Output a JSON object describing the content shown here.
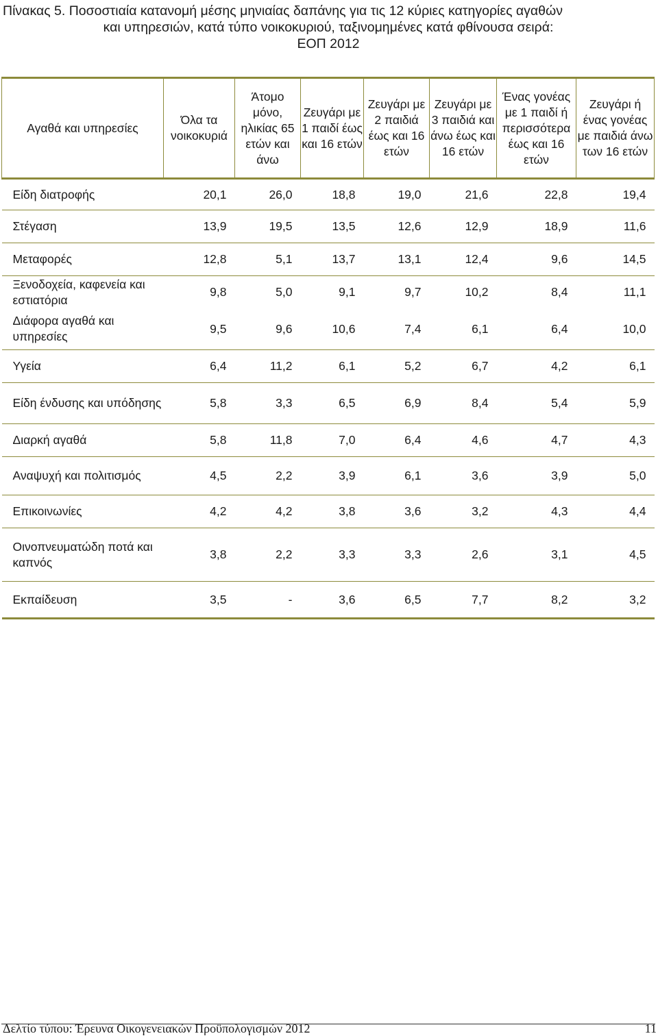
{
  "title": {
    "line1": "Πίνακας 5. Ποσοστιαία κατανομή μέσης μηνιαίας δαπάνης για τις 12 κύριες κατηγορίες αγαθών",
    "line2": "και υπηρεσιών, κατά τύπο νοικοκυριού, ταξινομημένες κατά φθίνουσα σειρά:",
    "line3": "ΕΟΠ 2012"
  },
  "headers": [
    "Αγαθά και υπηρεσίες",
    "Όλα τα νοικοκυριά",
    "Άτομο μόνο, ηλικίας 65 ετών και άνω",
    "Ζευγάρι με 1 παιδί έως και 16 ετών",
    "Ζευγάρι με 2 παιδιά έως και 16 ετών",
    "Ζευγάρι με 3 παιδιά και άνω έως και 16 ετών",
    "Ένας γονέας με 1 παιδί ή περισσότερα έως και 16 ετών",
    "Ζευγάρι ή ένας γονέας με παιδιά άνω των 16 ετών"
  ],
  "rows": [
    {
      "category": "Είδη διατροφής",
      "values": [
        "20,1",
        "26,0",
        "18,8",
        "19,0",
        "21,6",
        "22,8",
        "19,4"
      ]
    },
    {
      "category": "Στέγαση",
      "values": [
        "13,9",
        "19,5",
        "13,5",
        "12,6",
        "12,9",
        "18,9",
        "11,6"
      ]
    },
    {
      "category": "Μεταφορές",
      "values": [
        "12,8",
        "5,1",
        "13,7",
        "13,1",
        "12,4",
        "9,6",
        "14,5"
      ]
    },
    {
      "category": "Ξενοδοχεία, καφενεία και εστιατόρια",
      "values": [
        "9,8",
        "5,0",
        "9,1",
        "9,7",
        "10,2",
        "8,4",
        "11,1"
      ]
    },
    {
      "category": "Διάφορα αγαθά και υπηρεσίες",
      "values": [
        "9,5",
        "9,6",
        "10,6",
        "7,4",
        "6,1",
        "6,4",
        "10,0"
      ]
    },
    {
      "category": "Υγεία",
      "values": [
        "6,4",
        "11,2",
        "6,1",
        "5,2",
        "6,7",
        "4,2",
        "6,1"
      ]
    },
    {
      "category": "Είδη ένδυσης και υπόδησης",
      "values": [
        "5,8",
        "3,3",
        "6,5",
        "6,9",
        "8,4",
        "5,4",
        "5,9"
      ]
    },
    {
      "category": "Διαρκή αγαθά",
      "values": [
        "5,8",
        "11,8",
        "7,0",
        "6,4",
        "4,6",
        "4,7",
        "4,3"
      ]
    },
    {
      "category": "Αναψυχή και πολιτισμός",
      "values": [
        "4,5",
        "2,2",
        "3,9",
        "6,1",
        "3,6",
        "3,9",
        "5,0"
      ]
    },
    {
      "category": "Επικοινωνίες",
      "values": [
        "4,2",
        "4,2",
        "3,8",
        "3,6",
        "3,2",
        "4,3",
        "4,4"
      ]
    },
    {
      "category": "Οινοπνευματώδη ποτά και καπνός",
      "values": [
        "3,8",
        "2,2",
        "3,3",
        "3,3",
        "2,6",
        "3,1",
        "4,5"
      ]
    },
    {
      "category": "Εκπαίδευση",
      "values": [
        "3,5",
        "-",
        "3,6",
        "6,5",
        "7,7",
        "8,2",
        "3,2"
      ]
    }
  ],
  "footer": {
    "publication": "Δελτίο τύπου: Έρευνα Οικογενειακών Προϋπολογισμών 2012",
    "page_number": "11"
  }
}
